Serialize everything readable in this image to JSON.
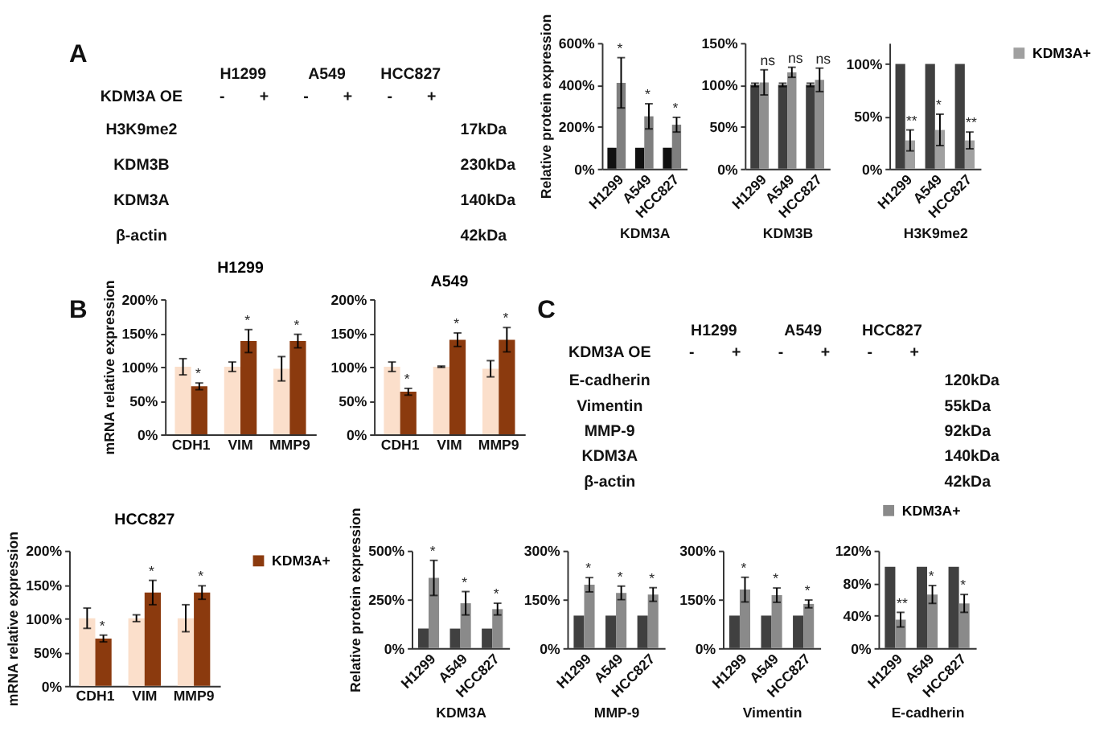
{
  "chart_data": [
    {
      "type": "other",
      "title": "A",
      "categories": [
        "H1299",
        "A549",
        "HCC827"
      ],
      "y_categories": [
        "H3K9me2",
        "KDM3B",
        "KDM3A",
        "β-actin"
      ],
      "y2_categories": [
        "17kDa",
        "230kDa",
        "140kDa",
        "42kDa"
      ],
      "annotations": [
        "KDM3A OE",
        "-",
        "+",
        "-",
        "+",
        "-",
        "+"
      ]
    },
    {
      "type": "bar",
      "categories": [
        "H1299",
        "A549",
        "HCC827"
      ],
      "series": [
        {
          "color": "#111111",
          "values": [
            100,
            100,
            100
          ]
        },
        {
          "color": "#7f7f7f",
          "values": [
            410,
            250,
            210
          ],
          "errors": [
            120,
            60,
            35
          ]
        }
      ],
      "ylim": [
        0,
        600
      ],
      "yticks": [
        {
          "value": 0,
          "label": "0%"
        },
        {
          "value": 200,
          "label": "200%"
        },
        {
          "value": 400,
          "label": "400%"
        },
        {
          "value": 600,
          "label": "600%"
        }
      ],
      "ylabel": "Relative protein expression",
      "xlabel": "KDM3A",
      "annotations": [
        "*",
        "*",
        "*"
      ]
    },
    {
      "type": "bar",
      "categories": [
        "H1299",
        "A549",
        "HCC827"
      ],
      "series": [
        {
          "color": "#3f3f3f",
          "values": [
            100,
            100,
            100
          ],
          "errors": [
            2,
            2,
            2
          ]
        },
        {
          "color": "#8f8f8f",
          "values": [
            103,
            115,
            106
          ],
          "errors": [
            15,
            6,
            14
          ]
        }
      ],
      "ylim": [
        0,
        150
      ],
      "yticks": [
        {
          "value": 0,
          "label": "0%"
        },
        {
          "value": 50,
          "label": "50%"
        },
        {
          "value": 100,
          "label": "100%"
        },
        {
          "value": 150,
          "label": "150%"
        }
      ],
      "xlabel": "KDM3B",
      "annotations": [
        "ns",
        "ns",
        "ns"
      ]
    },
    {
      "type": "bar",
      "categories": [
        "H1299",
        "A549",
        "HCC827"
      ],
      "series": [
        {
          "color": "#404040",
          "values": [
            100,
            100,
            100
          ]
        },
        {
          "name": "KDM3A+",
          "color": "#a0a0a0",
          "values": [
            27,
            37,
            27
          ],
          "errors": [
            10,
            15,
            8
          ]
        }
      ],
      "ylim": [
        0,
        120
      ],
      "yticks": [
        {
          "value": 0,
          "label": "0%"
        },
        {
          "value": 50,
          "label": "50%"
        },
        {
          "value": 100,
          "label": "100%"
        }
      ],
      "xlabel": "H3K9me2",
      "legend": "top right",
      "annotations": [
        "**",
        "*",
        "**"
      ]
    },
    {
      "type": "other",
      "title": "B"
    },
    {
      "type": "bar",
      "title": "H1299",
      "categories": [
        "CDH1",
        "VIM",
        "MMP9"
      ],
      "series": [
        {
          "color": "#fbdfcb",
          "values": [
            100,
            100,
            97
          ],
          "errors": [
            12,
            7,
            18
          ]
        },
        {
          "color": "#8b3a0e",
          "values": [
            71,
            138,
            138
          ],
          "errors": [
            5,
            17,
            10
          ]
        }
      ],
      "ylim": [
        0,
        200
      ],
      "yticks": [
        {
          "value": 0,
          "label": "0%"
        },
        {
          "value": 50,
          "label": "50%"
        },
        {
          "value": 100,
          "label": "100%"
        },
        {
          "value": 150,
          "label": "150%"
        },
        {
          "value": 200,
          "label": "200%"
        }
      ],
      "ylabel": "mRNA relative expression",
      "annotations": [
        "*",
        "*",
        "*"
      ]
    },
    {
      "type": "bar",
      "title": "A549",
      "categories": [
        "CDH1",
        "VIM",
        "MMP9"
      ],
      "series": [
        {
          "color": "#fbdfcb",
          "values": [
            100,
            100,
            97
          ],
          "errors": [
            7,
            1,
            12
          ]
        },
        {
          "color": "#8b3a0e",
          "values": [
            63,
            140,
            140
          ],
          "errors": [
            5,
            10,
            18
          ]
        }
      ],
      "ylim": [
        0,
        200
      ],
      "yticks": [
        {
          "value": 0,
          "label": "0%"
        },
        {
          "value": 50,
          "label": "50%"
        },
        {
          "value": 100,
          "label": "100%"
        },
        {
          "value": 150,
          "label": "150%"
        },
        {
          "value": 200,
          "label": "200%"
        }
      ],
      "annotations": [
        "*",
        "*",
        "*"
      ]
    },
    {
      "type": "other",
      "title": "C",
      "categories": [
        "H1299",
        "A549",
        "HCC827"
      ],
      "y_categories": [
        "E-cadherin",
        "Vimentin",
        "MMP-9",
        "KDM3A",
        "β-actin"
      ],
      "y2_categories": [
        "120kDa",
        "55kDa",
        "92kDa",
        "140kDa",
        "42kDa"
      ],
      "annotations": [
        "KDM3A OE",
        "-",
        "+",
        "-",
        "+",
        "-",
        "+"
      ]
    },
    {
      "type": "bar",
      "title": "HCC827",
      "categories": [
        "CDH1",
        "VIM",
        "MMP9"
      ],
      "series": [
        {
          "color": "#fbdfcb",
          "values": [
            100,
            100,
            100
          ],
          "errors": [
            15,
            5,
            20
          ]
        },
        {
          "name": "KDM3A+",
          "color": "#8b3a0e",
          "values": [
            70,
            138,
            138
          ],
          "errors": [
            5,
            18,
            10
          ]
        }
      ],
      "ylim": [
        0,
        200
      ],
      "yticks": [
        {
          "value": 0,
          "label": "0%"
        },
        {
          "value": 50,
          "label": "50%"
        },
        {
          "value": 100,
          "label": "100%"
        },
        {
          "value": 150,
          "label": "150%"
        },
        {
          "value": 200,
          "label": "200%"
        }
      ],
      "ylabel": "mRNA relative expression",
      "legend": "top right",
      "annotations": [
        "*",
        "*",
        "*"
      ]
    },
    {
      "type": "bar",
      "categories": [
        "H1299",
        "A549",
        "HCC827"
      ],
      "series": [
        {
          "color": "#404040",
          "values": [
            100,
            100,
            100
          ]
        },
        {
          "color": "#8a8a8a",
          "values": [
            360,
            230,
            200
          ],
          "errors": [
            90,
            60,
            30
          ]
        }
      ],
      "ylim": [
        0,
        500
      ],
      "yticks": [
        {
          "value": 0,
          "label": "0%"
        },
        {
          "value": 250,
          "label": "250%"
        },
        {
          "value": 500,
          "label": "500%"
        }
      ],
      "ylabel": "Relative protein expression",
      "xlabel": "KDM3A",
      "annotations": [
        "*",
        "*",
        "*"
      ]
    },
    {
      "type": "bar",
      "categories": [
        "H1299",
        "A549",
        "HCC827"
      ],
      "series": [
        {
          "color": "#404040",
          "values": [
            100,
            100,
            100
          ]
        },
        {
          "color": "#8a8a8a",
          "values": [
            195,
            170,
            165
          ],
          "errors": [
            22,
            21,
            21
          ]
        }
      ],
      "ylim": [
        0,
        300
      ],
      "yticks": [
        {
          "value": 0,
          "label": "0%"
        },
        {
          "value": 150,
          "label": "150%"
        },
        {
          "value": 300,
          "label": "300%"
        }
      ],
      "xlabel": "MMP-9",
      "annotations": [
        "*",
        "*",
        "*"
      ]
    },
    {
      "type": "bar",
      "categories": [
        "H1299",
        "A549",
        "HCC827"
      ],
      "series": [
        {
          "color": "#404040",
          "values": [
            100,
            100,
            100
          ]
        },
        {
          "color": "#8a8a8a",
          "values": [
            180,
            163,
            136
          ],
          "errors": [
            38,
            22,
            12
          ]
        }
      ],
      "ylim": [
        0,
        300
      ],
      "yticks": [
        {
          "value": 0,
          "label": "0%"
        },
        {
          "value": 150,
          "label": "150%"
        },
        {
          "value": 300,
          "label": "300%"
        }
      ],
      "xlabel": "Vimentin",
      "annotations": [
        "*",
        "*",
        "*"
      ]
    },
    {
      "type": "bar",
      "categories": [
        "H1299",
        "A549",
        "HCC827"
      ],
      "series": [
        {
          "color": "#404040",
          "values": [
            100,
            100,
            100
          ]
        },
        {
          "name": "KDM3A+",
          "color": "#8a8a8a",
          "values": [
            35,
            66,
            55
          ],
          "errors": [
            9,
            11,
            11
          ]
        }
      ],
      "ylim": [
        0,
        120
      ],
      "yticks": [
        {
          "value": 0,
          "label": "0%"
        },
        {
          "value": 40,
          "label": "40%"
        },
        {
          "value": 80,
          "label": "80%"
        },
        {
          "value": 120,
          "label": "120%"
        }
      ],
      "xlabel": "E-cadherin",
      "legend": "top",
      "annotations": [
        "**",
        "*",
        "*"
      ]
    }
  ]
}
